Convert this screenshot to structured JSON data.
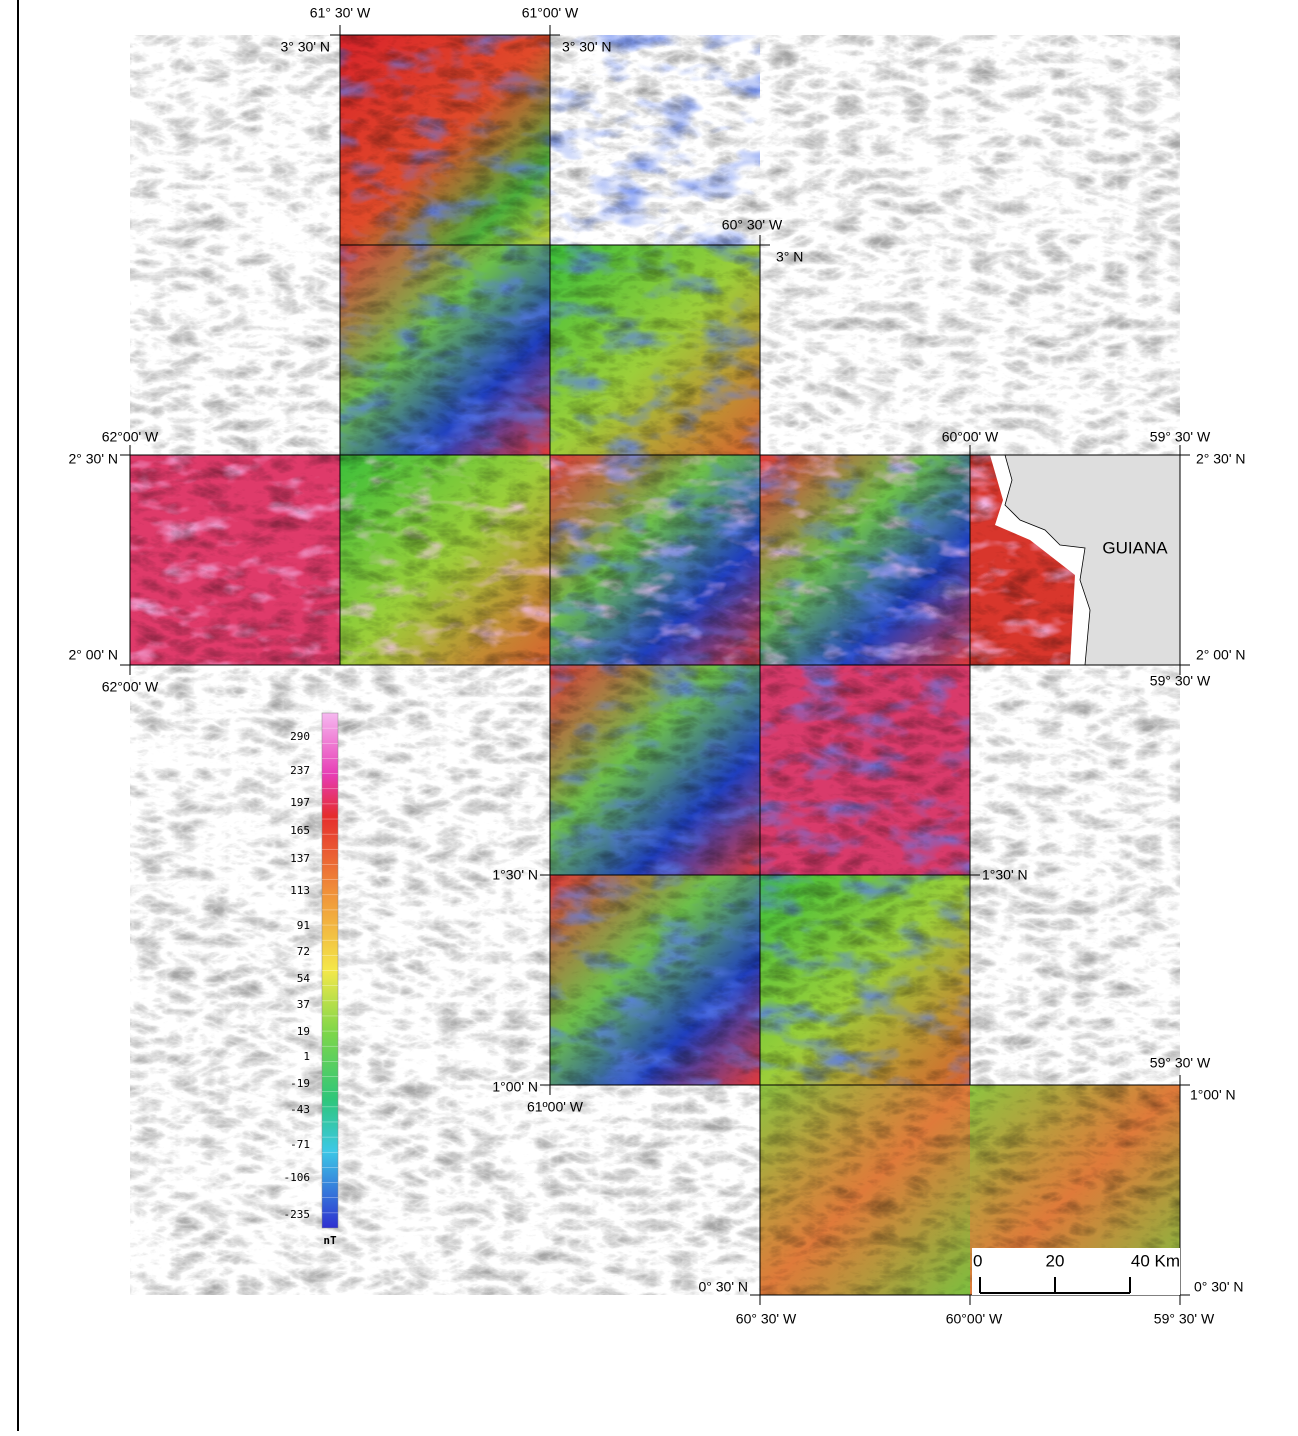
{
  "coordinate_labels": [
    "61° 30' W",
    "61°00' W",
    "3° 30' N",
    "3° 30' N",
    "60° 30' W",
    "3° N",
    "62°00' W",
    "2° 30' N",
    "60°00' W",
    "59° 30' W",
    "2° 30' N",
    "2° 00' N",
    "62°00' W",
    "2° 00' N",
    "59° 30' W",
    "1°30' N",
    "1°30' N",
    "59° 30' W",
    "1°00' N",
    "61º00' W",
    "1°00' N",
    "0° 30' N",
    "0° 30' N",
    "60° 30' W",
    "60°00' W",
    "59° 30' W"
  ],
  "region_label": "GUIANA",
  "legend": {
    "ticks": [
      290,
      237,
      197,
      165,
      137,
      113,
      91,
      72,
      54,
      37,
      19,
      1,
      -19,
      -43,
      -71,
      -106,
      -235
    ],
    "unit": "nT"
  },
  "scale_bar": {
    "labels": [
      "0",
      "20",
      "40 Km"
    ]
  }
}
